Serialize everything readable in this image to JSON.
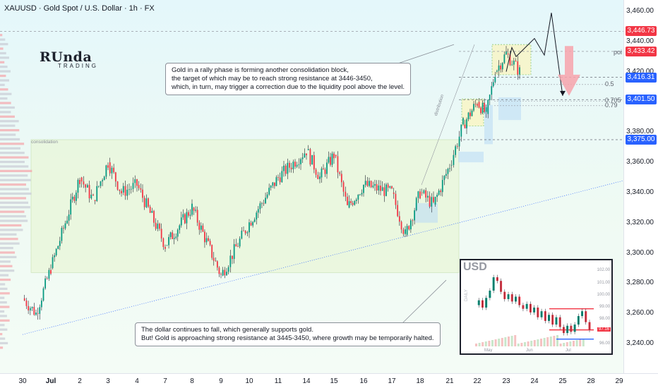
{
  "header": {
    "title": "XAUUSD · Gold Spot / U.S. Dollar · 1h · FX"
  },
  "logo": {
    "main": "RUnda",
    "sub": "TRADING"
  },
  "callouts": {
    "top": [
      "Gold in a rally phase is forming another consolidation block,",
      "the target of which may be to reach strong resistance at 3446-3450,",
      "which, in turn, may trigger a correction due to the liquidity pool above the level."
    ],
    "bottom": [
      "The dollar continues to fall, which generally supports gold.",
      "But! Gold is approaching strong resistance at 3445-3450, where growth may be temporarily halted."
    ]
  },
  "labels": {
    "consolidation": "consolidation",
    "distribution": "distribution",
    "poi": "poi"
  },
  "fib_levels": [
    {
      "label": "0.5",
      "price": 3411.5
    },
    {
      "label": "0.705",
      "price": 3400.5
    },
    {
      "label": "0.79",
      "price": 3397.5
    }
  ],
  "price_tags": [
    {
      "value": "3,446.73",
      "price": 3446.73,
      "color": "#f23645"
    },
    {
      "value": "3,433.42",
      "price": 3433.42,
      "color": "#f23645"
    },
    {
      "value": "3,416.31",
      "price": 3416.31,
      "color": "#2962ff"
    },
    {
      "value": "3,401.50",
      "price": 3401.5,
      "color": "#2962ff"
    },
    {
      "value": "3,375.00",
      "price": 3375.0,
      "color": "#2962ff"
    }
  ],
  "chart_data": [
    {
      "type": "candlestick",
      "title": "XAUUSD · Gold Spot / U.S. Dollar · 1h · FX",
      "y_ticks": [
        "3,460.00",
        "3,440.00",
        "3,420.00",
        "3,400.00",
        "3,380.00",
        "3,360.00",
        "3,340.00",
        "3,320.00",
        "3,300.00",
        "3,280.00",
        "3,260.00",
        "3,240.00"
      ],
      "y_tick_values": [
        3460,
        3440,
        3420,
        3400,
        3380,
        3360,
        3340,
        3320,
        3300,
        3280,
        3260,
        3240
      ],
      "ylim": [
        3232,
        3465
      ],
      "x_ticks": [
        "30",
        "Jul",
        "2",
        "3",
        "4",
        "7",
        "8",
        "9",
        "10",
        "11",
        "14",
        "15",
        "16",
        "17",
        "18",
        "21",
        "22",
        "23",
        "24",
        "25",
        "28",
        "29"
      ],
      "key_levels": [
        3446.73,
        3433.42,
        3416.31,
        3401.5,
        3375.0
      ],
      "price_path": [
        [
          "30",
          3270
        ],
        [
          "30",
          3260
        ],
        [
          "Jul",
          3290
        ],
        [
          "2",
          3350
        ],
        [
          "2",
          3335
        ],
        [
          "3",
          3360
        ],
        [
          "3",
          3340
        ],
        [
          "4",
          3345
        ],
        [
          "7",
          3305
        ],
        [
          "8",
          3330
        ],
        [
          "9",
          3285
        ],
        [
          "10",
          3320
        ],
        [
          "11",
          3350
        ],
        [
          "14",
          3368
        ],
        [
          "14",
          3350
        ],
        [
          "15",
          3365
        ],
        [
          "15",
          3330
        ],
        [
          "16",
          3345
        ],
        [
          "17",
          3340
        ],
        [
          "17",
          3312
        ],
        [
          "18",
          3340
        ],
        [
          "18",
          3332
        ],
        [
          "21",
          3358
        ],
        [
          "21",
          3385
        ],
        [
          "22",
          3400
        ],
        [
          "22",
          3392
        ],
        [
          "22",
          3420
        ],
        [
          "23",
          3432
        ],
        [
          "23",
          3420
        ]
      ],
      "projection": [
        [
          "23",
          3420
        ],
        [
          "23",
          3436
        ],
        [
          "23",
          3430
        ],
        [
          "24",
          3442
        ],
        [
          "24",
          3431
        ],
        [
          "24",
          3459
        ],
        [
          "25",
          3404
        ]
      ]
    },
    {
      "type": "line",
      "title": "USD",
      "period": "DAILY",
      "y_ticks": [
        "102.00",
        "101.00",
        "100.00",
        "99.00",
        "98.00",
        "97.16",
        "96.00"
      ],
      "ylim": [
        95.8,
        102.2
      ],
      "x_ticks": [
        "May",
        "Jun",
        "Jul"
      ],
      "levels": [
        {
          "value": 98.9,
          "color": "#f23645"
        },
        {
          "value": 97.16,
          "color": "#f23645"
        },
        {
          "value": 96.4,
          "color": "#2962ff"
        }
      ],
      "values": [
        99.2,
        99.6,
        99.0,
        99.8,
        100.4,
        101.5,
        101.2,
        100.3,
        99.7,
        100.1,
        99.5,
        99.9,
        99.2,
        98.9,
        99.3,
        98.6,
        99.0,
        98.2,
        98.7,
        97.9,
        98.4,
        97.6,
        98.2,
        97.4,
        96.9,
        97.5,
        97.0,
        97.6,
        98.3,
        98.7,
        97.8,
        97.16
      ]
    }
  ]
}
